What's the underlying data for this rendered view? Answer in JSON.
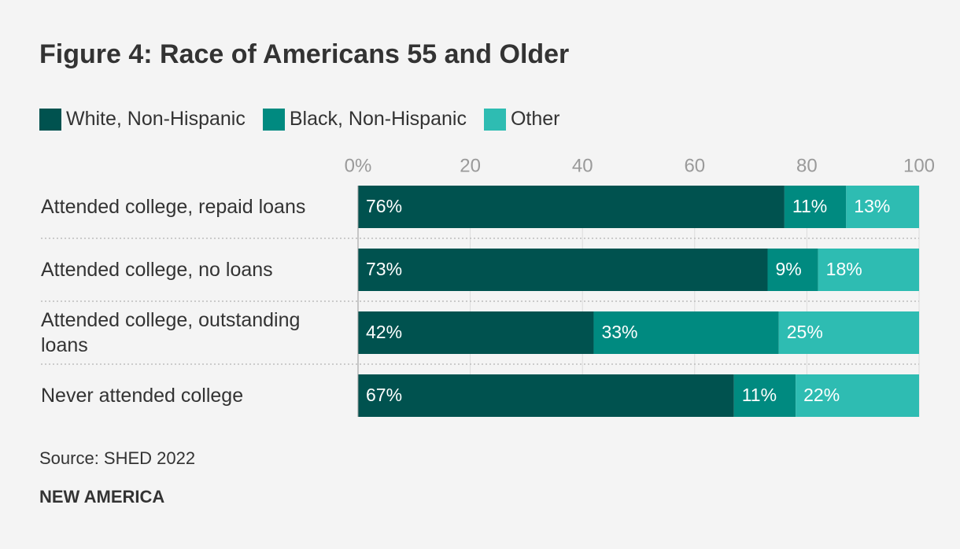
{
  "chart_data": {
    "type": "stacked-bar-horizontal",
    "title": "Figure 4: Race of Americans 55 and Older",
    "categories": [
      "Attended college, repaid loans",
      "Attended college, no loans",
      "Attended college, outstanding loans",
      "Never attended college"
    ],
    "series": [
      {
        "name": "White, Non-Hispanic",
        "color": "#00524f",
        "values": [
          76,
          73,
          42,
          67
        ],
        "value_labels": [
          "76%",
          "73%",
          "42%",
          "67%"
        ]
      },
      {
        "name": "Black, Non-Hispanic",
        "color": "#008a80",
        "values": [
          11,
          9,
          33,
          11
        ],
        "value_labels": [
          "11%",
          "9%",
          "33%",
          "11%"
        ]
      },
      {
        "name": "Other",
        "color": "#2ebcb2",
        "values": [
          13,
          18,
          25,
          22
        ],
        "value_labels": [
          "13%",
          "18%",
          "25%",
          "22%"
        ]
      }
    ],
    "xlim": [
      0,
      100
    ],
    "xticks": [
      {
        "value": 0,
        "label": "0%"
      },
      20,
      40,
      60,
      80,
      100
    ],
    "grid": true,
    "source": "Source: SHED 2022",
    "brand": "NEW AMERICA"
  }
}
